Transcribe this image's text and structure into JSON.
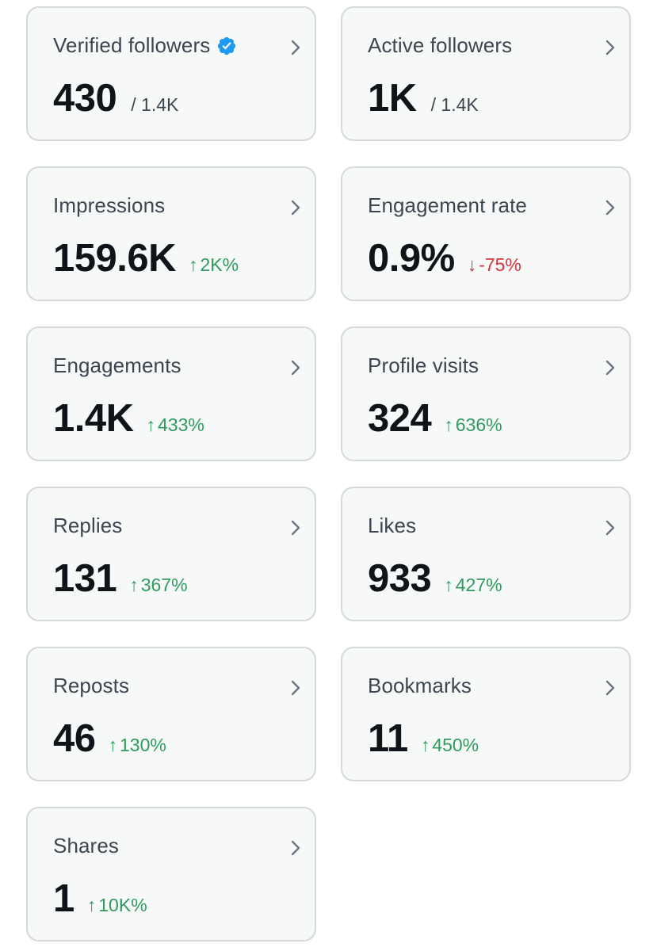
{
  "colors": {
    "card_bg": "#f7f9f9",
    "card_border": "#d4d9dd",
    "value_text": "#0f1419",
    "label_text": "#3c4650",
    "positive": "#2e9b5e",
    "negative": "#d0343c",
    "verified_blue": "#1d9bf0"
  },
  "cards": [
    {
      "title": "Verified followers",
      "value": "430",
      "sub": "/ 1.4K",
      "icon": "verified-badge-icon"
    },
    {
      "title": "Active followers",
      "value": "1K",
      "sub": "/ 1.4K"
    },
    {
      "title": "Impressions",
      "value": "159.6K",
      "change": {
        "arrow": "↑",
        "text": "2K%",
        "direction": "up"
      }
    },
    {
      "title": "Engagement rate",
      "value": "0.9%",
      "change": {
        "arrow": "↓",
        "text": "-75%",
        "direction": "down"
      }
    },
    {
      "title": "Engagements",
      "value": "1.4K",
      "change": {
        "arrow": "↑",
        "text": "433%",
        "direction": "up"
      }
    },
    {
      "title": "Profile visits",
      "value": "324",
      "change": {
        "arrow": "↑",
        "text": "636%",
        "direction": "up"
      }
    },
    {
      "title": "Replies",
      "value": "131",
      "change": {
        "arrow": "↑",
        "text": "367%",
        "direction": "up"
      }
    },
    {
      "title": "Likes",
      "value": "933",
      "change": {
        "arrow": "↑",
        "text": "427%",
        "direction": "up"
      }
    },
    {
      "title": "Reposts",
      "value": "46",
      "change": {
        "arrow": "↑",
        "text": "130%",
        "direction": "up"
      }
    },
    {
      "title": "Bookmarks",
      "value": "11",
      "change": {
        "arrow": "↑",
        "text": "450%",
        "direction": "up"
      }
    },
    {
      "title": "Shares",
      "value": "1",
      "change": {
        "arrow": "↑",
        "text": "10K%",
        "direction": "up"
      }
    }
  ]
}
